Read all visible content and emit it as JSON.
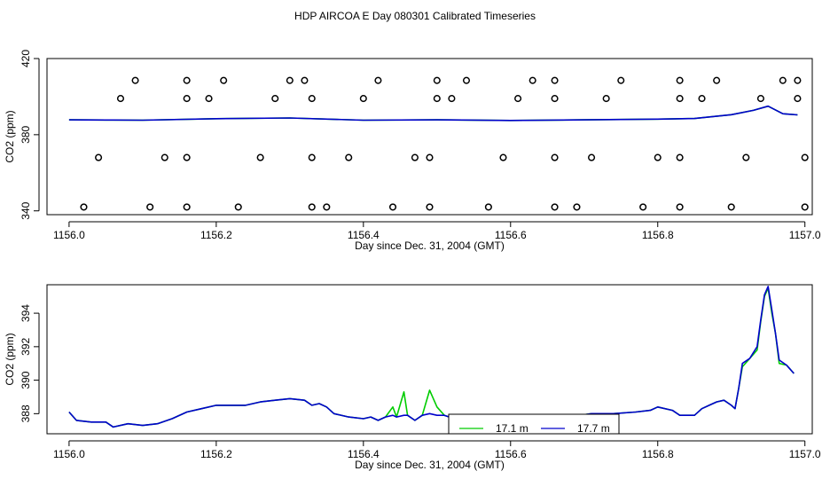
{
  "chart_data": [
    {
      "type": "scatter",
      "title": "HDP AIRCOA E  Day 080301  Calibrated Timeseries",
      "xlabel": "Day since Dec. 31, 2004 (GMT)",
      "ylabel": "CO2 (ppm)",
      "xlim": [
        1155.97,
        1157.01
      ],
      "ylim": [
        338,
        420
      ],
      "xticks": [
        1156.0,
        1156.2,
        1156.4,
        1156.6,
        1156.8,
        1157.0
      ],
      "xtick_labels": [
        "1156.0",
        "1156.2",
        "1156.4",
        "1156.6",
        "1156.8",
        "1157.0"
      ],
      "yticks": [
        340,
        380,
        420
      ],
      "ytick_labels": [
        "340",
        "380",
        "420"
      ],
      "grid": false,
      "legend": "none",
      "series": [
        {
          "marker": "circle",
          "color": "#000000",
          "points": [
            [
              1156.09,
              408.5
            ],
            [
              1156.16,
              408.5
            ],
            [
              1156.21,
              408.5
            ],
            [
              1156.3,
              408.5
            ],
            [
              1156.32,
              408.5
            ],
            [
              1156.42,
              408.5
            ],
            [
              1156.5,
              408.5
            ],
            [
              1156.54,
              408.5
            ],
            [
              1156.63,
              408.5
            ],
            [
              1156.66,
              408.5
            ],
            [
              1156.75,
              408.5
            ],
            [
              1156.83,
              408.5
            ],
            [
              1156.88,
              408.5
            ],
            [
              1156.97,
              408.5
            ],
            [
              1156.99,
              408.5
            ],
            [
              1156.07,
              399.0
            ],
            [
              1156.16,
              399.0
            ],
            [
              1156.19,
              399.0
            ],
            [
              1156.28,
              399.0
            ],
            [
              1156.33,
              399.0
            ],
            [
              1156.4,
              399.0
            ],
            [
              1156.5,
              399.0
            ],
            [
              1156.52,
              399.0
            ],
            [
              1156.61,
              399.0
            ],
            [
              1156.66,
              399.0
            ],
            [
              1156.73,
              399.0
            ],
            [
              1156.83,
              399.0
            ],
            [
              1156.86,
              399.0
            ],
            [
              1156.94,
              399.0
            ],
            [
              1156.99,
              399.0
            ],
            [
              1156.04,
              368.0
            ],
            [
              1156.13,
              368.0
            ],
            [
              1156.16,
              368.0
            ],
            [
              1156.26,
              368.0
            ],
            [
              1156.33,
              368.0
            ],
            [
              1156.38,
              368.0
            ],
            [
              1156.47,
              368.0
            ],
            [
              1156.49,
              368.0
            ],
            [
              1156.59,
              368.0
            ],
            [
              1156.66,
              368.0
            ],
            [
              1156.71,
              368.0
            ],
            [
              1156.8,
              368.0
            ],
            [
              1156.83,
              368.0
            ],
            [
              1156.92,
              368.0
            ],
            [
              1157.0,
              368.0
            ],
            [
              1156.02,
              342.0
            ],
            [
              1156.11,
              342.0
            ],
            [
              1156.16,
              342.0
            ],
            [
              1156.23,
              342.0
            ],
            [
              1156.33,
              342.0
            ],
            [
              1156.35,
              342.0
            ],
            [
              1156.44,
              342.0
            ],
            [
              1156.49,
              342.0
            ],
            [
              1156.57,
              342.0
            ],
            [
              1156.66,
              342.0
            ],
            [
              1156.69,
              342.0
            ],
            [
              1156.78,
              342.0
            ],
            [
              1156.83,
              342.0
            ],
            [
              1156.9,
              342.0
            ],
            [
              1157.0,
              342.0
            ]
          ]
        },
        {
          "name": "17.1 m",
          "color": "#00cc00",
          "points": [
            [
              1156.0,
              387.8
            ],
            [
              1156.05,
              387.7
            ],
            [
              1156.1,
              387.6
            ],
            [
              1156.2,
              388.4
            ],
            [
              1156.3,
              388.8
            ],
            [
              1156.4,
              387.6
            ],
            [
              1156.5,
              387.8
            ],
            [
              1156.6,
              387.5
            ],
            [
              1156.7,
              387.8
            ],
            [
              1156.8,
              388.2
            ],
            [
              1156.85,
              388.5
            ],
            [
              1156.9,
              390.5
            ],
            [
              1156.93,
              392.8
            ],
            [
              1156.95,
              395.0
            ],
            [
              1156.97,
              391.0
            ],
            [
              1156.99,
              390.4
            ]
          ]
        },
        {
          "name": "17.7 m",
          "color": "#0000cc",
          "points": [
            [
              1156.0,
              387.8
            ],
            [
              1156.05,
              387.7
            ],
            [
              1156.1,
              387.6
            ],
            [
              1156.2,
              388.4
            ],
            [
              1156.3,
              388.8
            ],
            [
              1156.4,
              387.6
            ],
            [
              1156.5,
              387.8
            ],
            [
              1156.6,
              387.5
            ],
            [
              1156.7,
              387.8
            ],
            [
              1156.8,
              388.2
            ],
            [
              1156.85,
              388.5
            ],
            [
              1156.9,
              390.5
            ],
            [
              1156.93,
              392.8
            ],
            [
              1156.95,
              395.0
            ],
            [
              1156.97,
              391.0
            ],
            [
              1156.99,
              390.4
            ]
          ]
        }
      ]
    },
    {
      "type": "line",
      "xlabel": "Day since Dec. 31, 2004 (GMT)",
      "ylabel": "CO2 (ppm)",
      "xlim": [
        1155.97,
        1157.01
      ],
      "ylim": [
        386.8,
        395.7
      ],
      "xticks": [
        1156.0,
        1156.2,
        1156.4,
        1156.6,
        1156.8,
        1157.0
      ],
      "xtick_labels": [
        "1156.0",
        "1156.2",
        "1156.4",
        "1156.6",
        "1156.8",
        "1157.0"
      ],
      "yticks": [
        388,
        390,
        392,
        394
      ],
      "ytick_labels": [
        "388",
        "390",
        "392",
        "394"
      ],
      "grid": false,
      "legend": "bottom-center",
      "series": [
        {
          "name": "17.1 m",
          "color": "#00cc00",
          "points": [
            [
              1156.0,
              388.1
            ],
            [
              1156.01,
              387.6
            ],
            [
              1156.03,
              387.5
            ],
            [
              1156.05,
              387.5
            ],
            [
              1156.06,
              387.2
            ],
            [
              1156.08,
              387.4
            ],
            [
              1156.1,
              387.3
            ],
            [
              1156.12,
              387.4
            ],
            [
              1156.14,
              387.7
            ],
            [
              1156.16,
              388.1
            ],
            [
              1156.18,
              388.3
            ],
            [
              1156.2,
              388.5
            ],
            [
              1156.22,
              388.5
            ],
            [
              1156.24,
              388.5
            ],
            [
              1156.26,
              388.7
            ],
            [
              1156.28,
              388.8
            ],
            [
              1156.3,
              388.9
            ],
            [
              1156.32,
              388.8
            ],
            [
              1156.33,
              388.5
            ],
            [
              1156.34,
              388.6
            ],
            [
              1156.35,
              388.4
            ],
            [
              1156.36,
              388.0
            ],
            [
              1156.38,
              387.8
            ],
            [
              1156.4,
              387.7
            ],
            [
              1156.41,
              387.8
            ],
            [
              1156.42,
              387.6
            ],
            [
              1156.43,
              387.8
            ],
            [
              1156.44,
              388.4
            ],
            [
              1156.445,
              387.8
            ],
            [
              1156.455,
              389.3
            ],
            [
              1156.46,
              387.9
            ],
            [
              1156.47,
              387.6
            ],
            [
              1156.48,
              387.9
            ],
            [
              1156.49,
              389.4
            ],
            [
              1156.5,
              388.4
            ],
            [
              1156.51,
              387.9
            ],
            [
              1156.53,
              387.6
            ],
            [
              1156.55,
              387.7
            ],
            [
              1156.57,
              387.5
            ],
            [
              1156.59,
              387.6
            ],
            [
              1156.62,
              387.6
            ],
            [
              1156.65,
              387.8
            ],
            [
              1156.68,
              387.8
            ],
            [
              1156.71,
              388.0
            ],
            [
              1156.74,
              388.0
            ],
            [
              1156.77,
              388.1
            ],
            [
              1156.79,
              388.2
            ],
            [
              1156.8,
              388.4
            ],
            [
              1156.82,
              388.2
            ],
            [
              1156.83,
              387.9
            ],
            [
              1156.85,
              387.9
            ],
            [
              1156.86,
              388.3
            ],
            [
              1156.87,
              388.5
            ],
            [
              1156.88,
              388.7
            ],
            [
              1156.89,
              388.8
            ],
            [
              1156.9,
              388.5
            ],
            [
              1156.905,
              388.3
            ],
            [
              1156.91,
              389.5
            ],
            [
              1156.915,
              390.8
            ],
            [
              1156.925,
              391.3
            ],
            [
              1156.935,
              391.8
            ],
            [
              1156.94,
              393.5
            ],
            [
              1156.945,
              395.0
            ],
            [
              1156.95,
              395.5
            ],
            [
              1156.955,
              394.0
            ],
            [
              1156.96,
              392.8
            ],
            [
              1156.965,
              391.0
            ],
            [
              1156.975,
              390.9
            ],
            [
              1156.985,
              390.4
            ]
          ]
        },
        {
          "name": "17.7 m",
          "color": "#0000cc",
          "points": [
            [
              1156.0,
              388.1
            ],
            [
              1156.01,
              387.6
            ],
            [
              1156.03,
              387.5
            ],
            [
              1156.05,
              387.5
            ],
            [
              1156.06,
              387.2
            ],
            [
              1156.08,
              387.4
            ],
            [
              1156.1,
              387.3
            ],
            [
              1156.12,
              387.4
            ],
            [
              1156.14,
              387.7
            ],
            [
              1156.16,
              388.1
            ],
            [
              1156.18,
              388.3
            ],
            [
              1156.2,
              388.5
            ],
            [
              1156.22,
              388.5
            ],
            [
              1156.24,
              388.5
            ],
            [
              1156.26,
              388.7
            ],
            [
              1156.28,
              388.8
            ],
            [
              1156.3,
              388.9
            ],
            [
              1156.32,
              388.8
            ],
            [
              1156.33,
              388.5
            ],
            [
              1156.34,
              388.6
            ],
            [
              1156.35,
              388.4
            ],
            [
              1156.36,
              388.0
            ],
            [
              1156.38,
              387.8
            ],
            [
              1156.4,
              387.7
            ],
            [
              1156.41,
              387.8
            ],
            [
              1156.42,
              387.6
            ],
            [
              1156.43,
              387.8
            ],
            [
              1156.44,
              387.9
            ],
            [
              1156.445,
              387.8
            ],
            [
              1156.455,
              387.9
            ],
            [
              1156.46,
              387.9
            ],
            [
              1156.47,
              387.6
            ],
            [
              1156.48,
              387.9
            ],
            [
              1156.49,
              388.0
            ],
            [
              1156.5,
              387.9
            ],
            [
              1156.51,
              387.9
            ],
            [
              1156.53,
              387.6
            ],
            [
              1156.55,
              387.7
            ],
            [
              1156.57,
              387.5
            ],
            [
              1156.59,
              387.6
            ],
            [
              1156.62,
              387.6
            ],
            [
              1156.65,
              387.8
            ],
            [
              1156.68,
              387.8
            ],
            [
              1156.71,
              388.0
            ],
            [
              1156.74,
              388.0
            ],
            [
              1156.77,
              388.1
            ],
            [
              1156.79,
              388.2
            ],
            [
              1156.8,
              388.4
            ],
            [
              1156.82,
              388.2
            ],
            [
              1156.83,
              387.9
            ],
            [
              1156.85,
              387.9
            ],
            [
              1156.86,
              388.3
            ],
            [
              1156.87,
              388.5
            ],
            [
              1156.88,
              388.7
            ],
            [
              1156.89,
              388.8
            ],
            [
              1156.9,
              388.5
            ],
            [
              1156.905,
              388.3
            ],
            [
              1156.91,
              389.5
            ],
            [
              1156.915,
              391.0
            ],
            [
              1156.925,
              391.3
            ],
            [
              1156.935,
              392.0
            ],
            [
              1156.94,
              393.6
            ],
            [
              1156.945,
              395.1
            ],
            [
              1156.95,
              395.6
            ],
            [
              1156.955,
              394.2
            ],
            [
              1156.96,
              392.8
            ],
            [
              1156.965,
              391.2
            ],
            [
              1156.975,
              390.9
            ],
            [
              1156.985,
              390.4
            ]
          ]
        }
      ]
    }
  ]
}
